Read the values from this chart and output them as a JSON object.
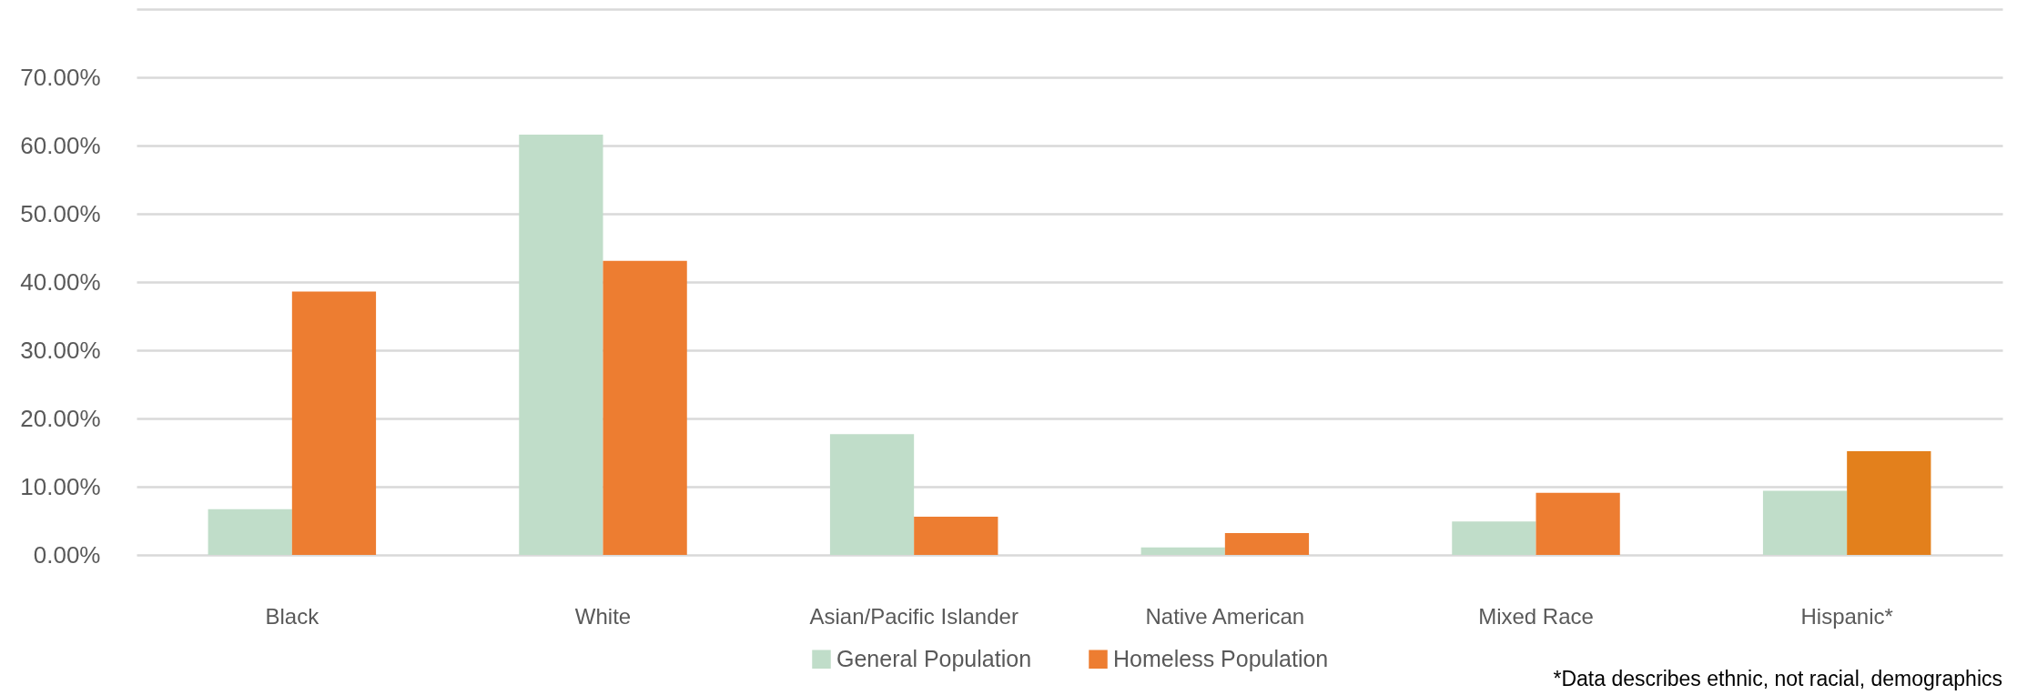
{
  "chart_data": {
    "type": "bar",
    "categories": [
      "Black",
      "White",
      "Asian/Pacific Islander",
      "Native American",
      "Mixed Race",
      "Hispanic*"
    ],
    "series": [
      {
        "name": "General Population",
        "color": "#c0ddc9",
        "values": [
          6.7,
          61.6,
          17.7,
          1.1,
          4.9,
          9.4
        ]
      },
      {
        "name": "Homeless Population",
        "color": "#ed7d31",
        "colors": [
          "#ed7d31",
          "#ed7d31",
          "#ed7d31",
          "#ed7d31",
          "#ed7d31",
          "#e3801c"
        ],
        "values": [
          38.6,
          43.1,
          5.6,
          3.2,
          9.1,
          15.2
        ]
      }
    ],
    "ylim": [
      0,
      80
    ],
    "yticks": [
      {
        "value": 0,
        "label": "0.00%"
      },
      {
        "value": 10,
        "label": "10.00%"
      },
      {
        "value": 20,
        "label": "20.00%"
      },
      {
        "value": 30,
        "label": "30.00%"
      },
      {
        "value": 40,
        "label": "40.00%"
      },
      {
        "value": 50,
        "label": "50.00%"
      },
      {
        "value": 60,
        "label": "60.00%"
      },
      {
        "value": 70,
        "label": "70.00%"
      },
      {
        "value": 80,
        "label": null
      }
    ],
    "grid": "y",
    "legend": "bottom",
    "annotations": [
      "*Data describes ethnic, not racial, demographics"
    ]
  }
}
